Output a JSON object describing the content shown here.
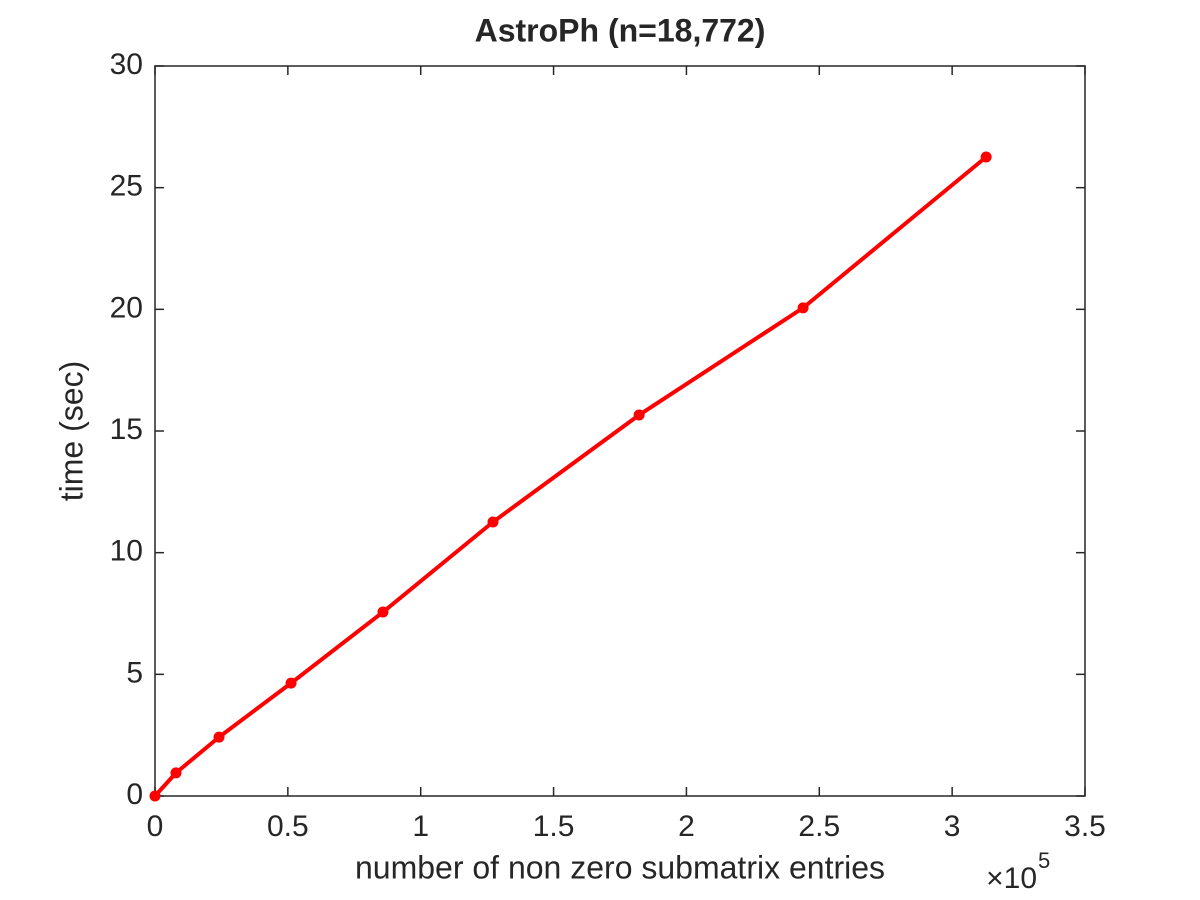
{
  "chart_data": {
    "type": "line",
    "title": "AstroPh (n=18,772)",
    "x_label": "number of non zero submatrix entries",
    "y_label": "time (sec)",
    "x_multiplier": {
      "base": "×10",
      "exponent": "5"
    },
    "x": [
      0,
      7900,
      24100,
      51200,
      85800,
      127200,
      182200,
      243900,
      312800
    ],
    "series": [
      {
        "name": "time",
        "color": "#ff0000",
        "values": [
          0,
          0.95,
          2.42,
          4.64,
          7.56,
          11.26,
          15.66,
          20.06,
          26.26
        ]
      }
    ],
    "xlim": [
      0,
      350000
    ],
    "xticks": [
      0,
      {
        "value": 50000,
        "label": "0.5"
      },
      {
        "value": 100000,
        "label": "1"
      },
      {
        "value": 150000,
        "label": "1.5"
      },
      {
        "value": 200000,
        "label": "2"
      },
      {
        "value": 250000,
        "label": "2.5"
      },
      {
        "value": 300000,
        "label": "3"
      },
      {
        "value": 350000,
        "label": "3.5"
      }
    ],
    "ylim": [
      0,
      30
    ],
    "yticks": [
      0,
      5,
      10,
      15,
      20,
      25,
      30
    ],
    "grid": false
  }
}
